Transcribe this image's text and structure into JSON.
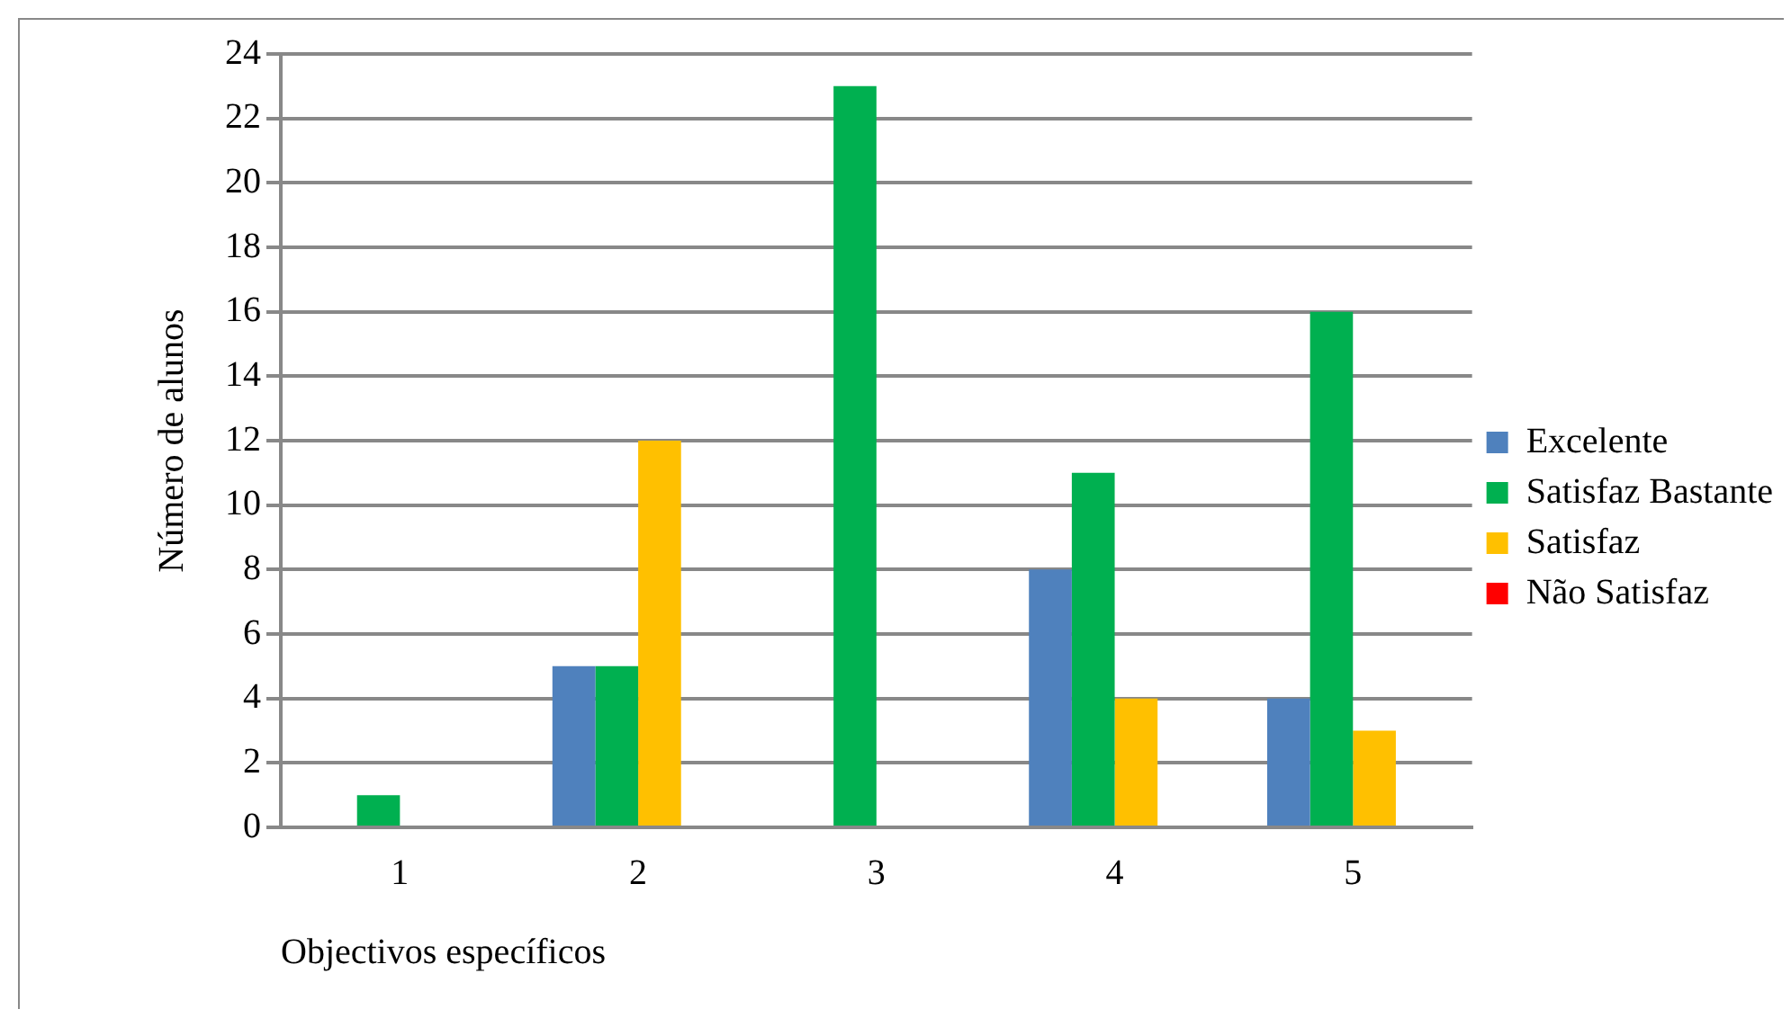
{
  "chart_data": {
    "type": "bar",
    "xlabel": "Objectivos específicos",
    "ylabel": "Número de alunos",
    "categories": [
      "1",
      "2",
      "3",
      "4",
      "5"
    ],
    "series": [
      {
        "name": "Excelente",
        "color": "#4f81bd",
        "values": [
          0,
          5,
          0,
          8,
          4
        ]
      },
      {
        "name": "Satisfaz Bastante",
        "color": "#00b050",
        "values": [
          1,
          5,
          23,
          11,
          16
        ]
      },
      {
        "name": "Satisfaz",
        "color": "#ffc000",
        "values": [
          0,
          12,
          0,
          4,
          3
        ]
      },
      {
        "name": "Não Satisfaz",
        "color": "#ff0000",
        "values": [
          0,
          0,
          0,
          0,
          0
        ]
      }
    ],
    "ylim": [
      0,
      24
    ],
    "yticks": [
      0,
      2,
      4,
      6,
      8,
      10,
      12,
      14,
      16,
      18,
      20,
      22,
      24
    ],
    "grid": "y",
    "legend": "right"
  }
}
